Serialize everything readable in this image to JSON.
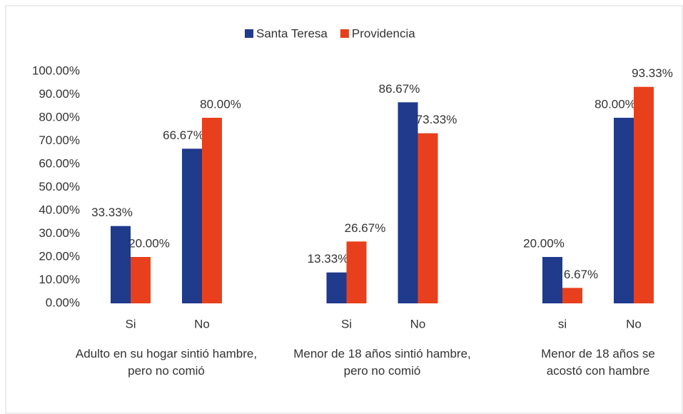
{
  "chart_data": {
    "type": "bar",
    "groups": [
      {
        "label": "Adulto en su hogar sintió hambre, pero no comió",
        "categories": [
          "Si",
          "No"
        ]
      },
      {
        "label": "Menor de 18 años sintió hambre, pero no comió",
        "categories": [
          "Si",
          "No"
        ]
      },
      {
        "label": "Menor de 18 años se acostó con hambre",
        "categories": [
          "si",
          "No"
        ]
      }
    ],
    "series": [
      {
        "name": "Santa Teresa",
        "color": "#203a8c",
        "values": [
          33.33,
          66.67,
          13.33,
          86.67,
          20,
          80
        ],
        "value_labels": [
          "33.33%",
          "66.67%",
          "13.33%",
          "86.67%",
          "20.00%",
          "80.00%"
        ]
      },
      {
        "name": "Providencia",
        "color": "#e8401c",
        "values": [
          20,
          80,
          26.67,
          73.33,
          6.67,
          93.33
        ],
        "value_labels": [
          "20.00%",
          "80.00%",
          "26.67%",
          "73.33%",
          "6.67%",
          "93.33%"
        ]
      }
    ],
    "ylim": [
      0,
      100
    ],
    "yticks": [
      {
        "value": 0,
        "label": "0.00%"
      },
      {
        "value": 10,
        "label": "10.00%"
      },
      {
        "value": 20,
        "label": "20.00%"
      },
      {
        "value": 30,
        "label": "30.00%"
      },
      {
        "value": 40,
        "label": "40.00%"
      },
      {
        "value": 50,
        "label": "50.00%"
      },
      {
        "value": 60,
        "label": "60.00%"
      },
      {
        "value": 70,
        "label": "70.00%"
      },
      {
        "value": 80,
        "label": "80.00%"
      },
      {
        "value": 90,
        "label": "90.00%"
      },
      {
        "value": 100,
        "label": "100.00%"
      }
    ],
    "grid": false,
    "legend": "top"
  }
}
